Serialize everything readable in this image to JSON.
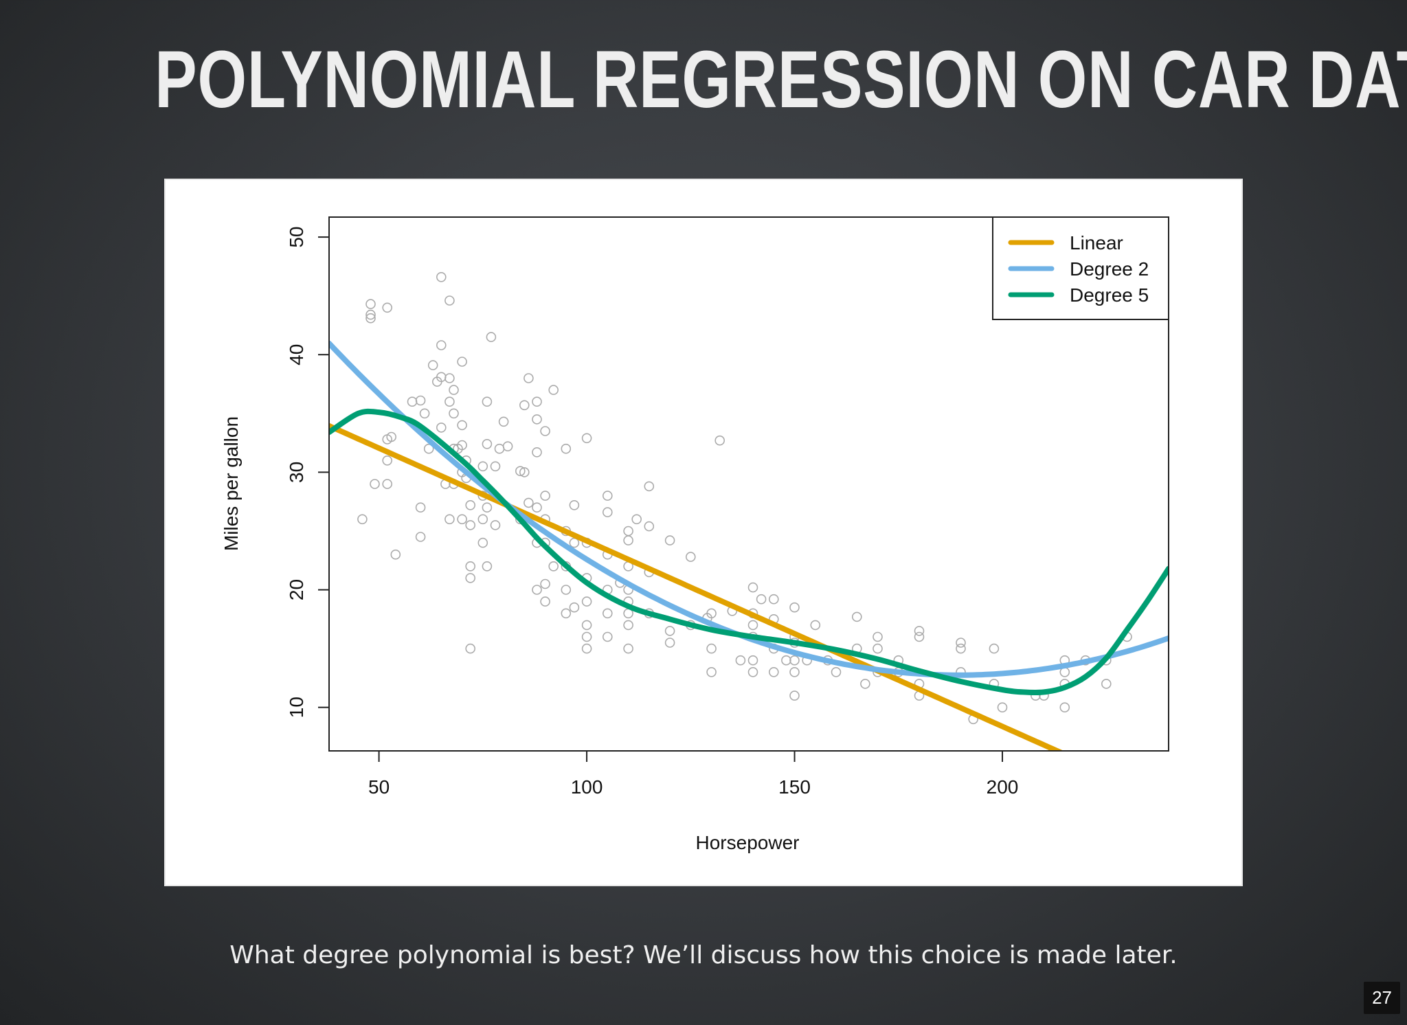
{
  "slide": {
    "title": "POLYNOMIAL REGRESSION ON CAR DATA",
    "caption": "What degree polynomial is best? We’ll discuss how this choice is made later.",
    "page_number": "27"
  },
  "chart_data": {
    "type": "scatter",
    "xlabel": "Horsepower",
    "ylabel": "Miles per gallon",
    "xlim": [
      38,
      240
    ],
    "ylim": [
      6.3,
      51.7
    ],
    "xticks": [
      50,
      100,
      150,
      200
    ],
    "yticks": [
      10,
      20,
      30,
      40,
      50
    ],
    "grid": false,
    "legend_position": "top-right",
    "points": {
      "color": "#aaaaaa",
      "data": [
        [
          46,
          26
        ],
        [
          48,
          44.3
        ],
        [
          48,
          43.4
        ],
        [
          48,
          43.1
        ],
        [
          49,
          29
        ],
        [
          52,
          44
        ],
        [
          52,
          32.8
        ],
        [
          52,
          31
        ],
        [
          52,
          29
        ],
        [
          53,
          33
        ],
        [
          54,
          23
        ],
        [
          58,
          36
        ],
        [
          60,
          36.1
        ],
        [
          60,
          27
        ],
        [
          60,
          24.5
        ],
        [
          61,
          35
        ],
        [
          62,
          32
        ],
        [
          63,
          39.1
        ],
        [
          64,
          37.7
        ],
        [
          65,
          46.6
        ],
        [
          65,
          40.8
        ],
        [
          65,
          38.1
        ],
        [
          65,
          33.8
        ],
        [
          66,
          29
        ],
        [
          67,
          44.6
        ],
        [
          67,
          38
        ],
        [
          67,
          36
        ],
        [
          67,
          26
        ],
        [
          68,
          37
        ],
        [
          68,
          35
        ],
        [
          68,
          32
        ],
        [
          68,
          29
        ],
        [
          69,
          32
        ],
        [
          70,
          39.4
        ],
        [
          70,
          34
        ],
        [
          70,
          32.3
        ],
        [
          70,
          30
        ],
        [
          70,
          26
        ],
        [
          71,
          31
        ],
        [
          71,
          29.5
        ],
        [
          72,
          27.2
        ],
        [
          72,
          25.5
        ],
        [
          72,
          22
        ],
        [
          72,
          21
        ],
        [
          72,
          15
        ],
        [
          75,
          30.5
        ],
        [
          75,
          28
        ],
        [
          75,
          26
        ],
        [
          75,
          24
        ],
        [
          76,
          36
        ],
        [
          76,
          32.4
        ],
        [
          76,
          27
        ],
        [
          76,
          22
        ],
        [
          77,
          41.5
        ],
        [
          78,
          30.5
        ],
        [
          78,
          25.5
        ],
        [
          79,
          32
        ],
        [
          80,
          34.3
        ],
        [
          81,
          32.2
        ],
        [
          84,
          30.1
        ],
        [
          84,
          26
        ],
        [
          85,
          35.7
        ],
        [
          85,
          30
        ],
        [
          86,
          38
        ],
        [
          86,
          27.4
        ],
        [
          88,
          36
        ],
        [
          88,
          34.5
        ],
        [
          88,
          31.7
        ],
        [
          88,
          27
        ],
        [
          88,
          24
        ],
        [
          88,
          20
        ],
        [
          90,
          33.5
        ],
        [
          90,
          28
        ],
        [
          90,
          26
        ],
        [
          90,
          24
        ],
        [
          90,
          20.5
        ],
        [
          90,
          19
        ],
        [
          92,
          37
        ],
        [
          92,
          22
        ],
        [
          95,
          32
        ],
        [
          95,
          25
        ],
        [
          95,
          22
        ],
        [
          95,
          20
        ],
        [
          95,
          18
        ],
        [
          97,
          27.2
        ],
        [
          97,
          24
        ],
        [
          97,
          18.5
        ],
        [
          100,
          32.9
        ],
        [
          100,
          24
        ],
        [
          100,
          21
        ],
        [
          100,
          19
        ],
        [
          100,
          17
        ],
        [
          100,
          16
        ],
        [
          100,
          15
        ],
        [
          105,
          28
        ],
        [
          105,
          26.6
        ],
        [
          105,
          23
        ],
        [
          105,
          20
        ],
        [
          105,
          18
        ],
        [
          105,
          16
        ],
        [
          108,
          20.6
        ],
        [
          110,
          25
        ],
        [
          110,
          24.2
        ],
        [
          110,
          22
        ],
        [
          110,
          20
        ],
        [
          110,
          19
        ],
        [
          110,
          18
        ],
        [
          110,
          17
        ],
        [
          110,
          15
        ],
        [
          112,
          26
        ],
        [
          115,
          28.8
        ],
        [
          115,
          25.4
        ],
        [
          115,
          21.5
        ],
        [
          115,
          18
        ],
        [
          120,
          24.2
        ],
        [
          120,
          16.5
        ],
        [
          120,
          15.5
        ],
        [
          125,
          22.8
        ],
        [
          125,
          17
        ],
        [
          129,
          17.6
        ],
        [
          130,
          18
        ],
        [
          130,
          15
        ],
        [
          130,
          13
        ],
        [
          132,
          32.7
        ],
        [
          135,
          18.2
        ],
        [
          137,
          14
        ],
        [
          140,
          20.2
        ],
        [
          140,
          18
        ],
        [
          140,
          17
        ],
        [
          140,
          16
        ],
        [
          140,
          14
        ],
        [
          140,
          13
        ],
        [
          142,
          19.2
        ],
        [
          145,
          19.2
        ],
        [
          145,
          17.5
        ],
        [
          145,
          15
        ],
        [
          145,
          13
        ],
        [
          148,
          14
        ],
        [
          150,
          18.5
        ],
        [
          150,
          16
        ],
        [
          150,
          15.5
        ],
        [
          150,
          14
        ],
        [
          150,
          13
        ],
        [
          150,
          11
        ],
        [
          153,
          14
        ],
        [
          155,
          17
        ],
        [
          158,
          14
        ],
        [
          160,
          13
        ],
        [
          165,
          17.7
        ],
        [
          165,
          15
        ],
        [
          167,
          12
        ],
        [
          170,
          16
        ],
        [
          170,
          15
        ],
        [
          170,
          13
        ],
        [
          175,
          14
        ],
        [
          175,
          13
        ],
        [
          180,
          16.5
        ],
        [
          180,
          16
        ],
        [
          180,
          12
        ],
        [
          180,
          11
        ],
        [
          190,
          15.5
        ],
        [
          190,
          15
        ],
        [
          190,
          13
        ],
        [
          193,
          9
        ],
        [
          198,
          15
        ],
        [
          198,
          12
        ],
        [
          200,
          10
        ],
        [
          208,
          11
        ],
        [
          210,
          11
        ],
        [
          215,
          14
        ],
        [
          215,
          13
        ],
        [
          215,
          12
        ],
        [
          215,
          10
        ],
        [
          220,
          14
        ],
        [
          225,
          14
        ],
        [
          225,
          12
        ],
        [
          230,
          16
        ]
      ]
    },
    "series": [
      {
        "name": "Linear",
        "color": "#e1a100",
        "kind": "linear",
        "coefficients": [
          39.94,
          -0.1578
        ]
      },
      {
        "name": "Degree 2",
        "color": "#6fb2e6",
        "kind": "polynomial",
        "coefficients": [
          56.9,
          -0.4662,
          0.0012305
        ]
      },
      {
        "name": "Degree 5",
        "color": "#009e73",
        "kind": "spline",
        "x": [
          38,
          45,
          50,
          55,
          60,
          70,
          75,
          80,
          85,
          90,
          100,
          110,
          120,
          130,
          140,
          150,
          160,
          170,
          180,
          190,
          200,
          205,
          210,
          215,
          220,
          225,
          230,
          235,
          240
        ],
        "y": [
          33.4,
          35.0,
          35.1,
          34.7,
          33.9,
          31.0,
          29.3,
          27.5,
          25.6,
          23.7,
          20.6,
          18.6,
          17.5,
          16.6,
          16.0,
          15.5,
          14.9,
          14.1,
          13.1,
          12.2,
          11.5,
          11.3,
          11.3,
          11.7,
          12.6,
          14.2,
          16.6,
          19.1,
          21.8
        ]
      }
    ]
  }
}
